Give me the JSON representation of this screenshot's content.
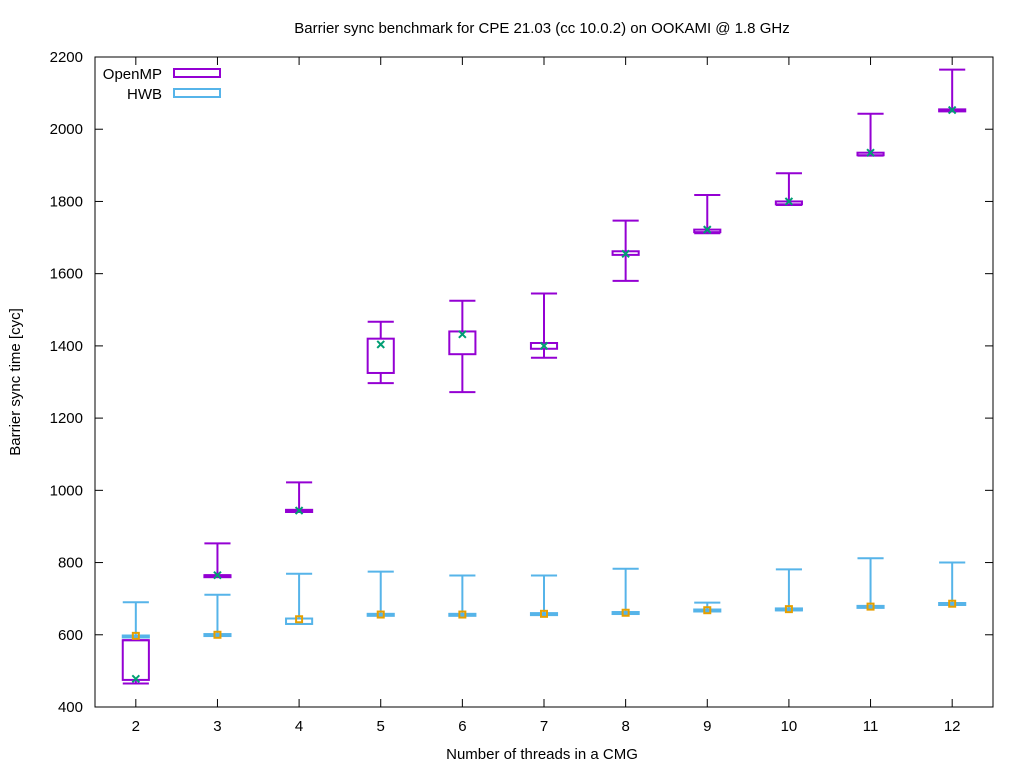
{
  "chart_data": {
    "type": "box",
    "title": "Barrier sync benchmark for CPE 21.03 (cc 10.0.2) on OOKAMI @ 1.8 GHz",
    "xlabel": "Number of threads in a CMG",
    "ylabel": "Barrier sync time [cyc]",
    "ylim": [
      400,
      2200
    ],
    "yticks": [
      400,
      600,
      800,
      1000,
      1200,
      1400,
      1600,
      1800,
      2000,
      2200
    ],
    "categories": [
      "2",
      "3",
      "4",
      "5",
      "6",
      "7",
      "8",
      "9",
      "10",
      "11",
      "12"
    ],
    "legend_position": "top-left",
    "series": [
      {
        "name": "OpenMP",
        "color": "#9400d3",
        "marker_color": "#009e73",
        "marker": "x",
        "min": [
          465,
          765,
          942,
          1297,
          1272,
          1367,
          1580,
          1712,
          1790,
          1927,
          2050
        ],
        "q1": [
          475,
          760,
          940,
          1325,
          1377,
          1392,
          1652,
          1715,
          1792,
          1928,
          2050
        ],
        "q3": [
          585,
          765,
          946,
          1420,
          1440,
          1408,
          1662,
          1722,
          1800,
          1935,
          2055
        ],
        "max": [
          585,
          853,
          1022,
          1467,
          1525,
          1545,
          1747,
          1818,
          1878,
          2043,
          2165
        ],
        "mean": [
          478,
          765,
          944,
          1404,
          1432,
          1400,
          1655,
          1722,
          1800,
          1935,
          2053
        ]
      },
      {
        "name": "HWB",
        "color": "#56b4e9",
        "marker_color": "#e69f00",
        "marker": "square",
        "min": [
          595,
          598,
          630,
          655,
          655,
          655,
          660,
          665,
          668,
          677,
          683
        ],
        "q1": [
          595,
          598,
          630,
          655,
          655,
          655,
          660,
          665,
          668,
          677,
          683
        ],
        "q3": [
          598,
          602,
          645,
          658,
          658,
          660,
          663,
          670,
          673,
          680,
          688
        ],
        "max": [
          690,
          711,
          769,
          775,
          764,
          764,
          783,
          689,
          781,
          812,
          800
        ],
        "mean": [
          597,
          600,
          643,
          656,
          656,
          658,
          661,
          668,
          671,
          678,
          686
        ]
      }
    ]
  }
}
